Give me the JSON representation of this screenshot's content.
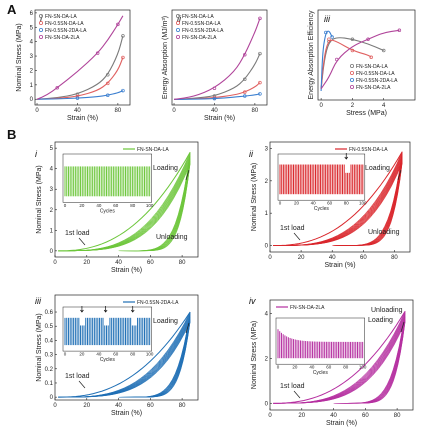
{
  "colors": {
    "la": "#7a7a7a",
    "s055": "#e06060",
    "s0552da": "#3b7fd0",
    "s2la": "#b0449a",
    "green": "#6cc63a",
    "red": "#d9262b",
    "blue": "#1f6fb5",
    "magenta": "#b52fa0"
  },
  "letters": {
    "a": "A",
    "b": "B"
  },
  "chart_data": [
    {
      "id": "A-i",
      "roman": "i",
      "type": "line",
      "xlabel": "Strain (%)",
      "ylabel": "Nominal Stress (MPa)",
      "xlim": [
        -2,
        92
      ],
      "ylim": [
        -0.4,
        6.2
      ],
      "xticks": [
        0,
        40,
        80
      ],
      "yticks": [
        0,
        1,
        2,
        3,
        4,
        5,
        6
      ],
      "legend": [
        "FN-SN-DA-LA",
        "FN-0.5SN-DA-LA",
        "FN-0.5SN-2DA-LA",
        "FN-SN-DA-2LA"
      ],
      "series": [
        {
          "name": "FN-SN-DA-LA",
          "color": "#7a7a7a",
          "points": [
            [
              0,
              0
            ],
            [
              20,
              0.1
            ],
            [
              40,
              0.35
            ],
            [
              60,
              1.0
            ],
            [
              70,
              1.7
            ],
            [
              80,
              3.1
            ],
            [
              85,
              4.4
            ]
          ]
        },
        {
          "name": "FN-0.5SN-DA-LA",
          "color": "#e06060",
          "points": [
            [
              0,
              0
            ],
            [
              20,
              0.05
            ],
            [
              40,
              0.2
            ],
            [
              60,
              0.6
            ],
            [
              70,
              1.1
            ],
            [
              80,
              2.0
            ],
            [
              85,
              2.9
            ]
          ]
        },
        {
          "name": "FN-0.5SN-2DA-LA",
          "color": "#3b7fd0",
          "points": [
            [
              0,
              0
            ],
            [
              20,
              0.02
            ],
            [
              40,
              0.08
            ],
            [
              60,
              0.18
            ],
            [
              70,
              0.28
            ],
            [
              80,
              0.45
            ],
            [
              85,
              0.6
            ]
          ]
        },
        {
          "name": "FN-SN-DA-2LA",
          "color": "#b0449a",
          "points": [
            [
              0,
              0
            ],
            [
              10,
              0.3
            ],
            [
              20,
              0.8
            ],
            [
              40,
              1.9
            ],
            [
              60,
              3.2
            ],
            [
              70,
              4.1
            ],
            [
              80,
              5.2
            ],
            [
              85,
              5.8
            ]
          ]
        }
      ]
    },
    {
      "id": "A-ii",
      "roman": "ii",
      "type": "line",
      "xlabel": "Strain (%)",
      "ylabel": "Energy Absorption (MJ/m³)",
      "xlim": [
        -2,
        92
      ],
      "ylim": [
        -0.1,
        1.6
      ],
      "xticks": [
        0,
        40,
        80
      ],
      "yticks": [],
      "legend": [
        "FN-SN-DA-LA",
        "FN-0.5SN-DA-LA",
        "FN-0.5SN-2DA-LA",
        "FN-SN-DA-2LA"
      ],
      "series": [
        {
          "name": "FN-SN-DA-LA",
          "color": "#7a7a7a",
          "points": [
            [
              0,
              0
            ],
            [
              20,
              0.02
            ],
            [
              40,
              0.06
            ],
            [
              60,
              0.2
            ],
            [
              70,
              0.36
            ],
            [
              80,
              0.62
            ],
            [
              85,
              0.82
            ]
          ]
        },
        {
          "name": "FN-0.5SN-DA-LA",
          "color": "#e06060",
          "points": [
            [
              0,
              0
            ],
            [
              20,
              0.01
            ],
            [
              40,
              0.03
            ],
            [
              60,
              0.08
            ],
            [
              70,
              0.13
            ],
            [
              80,
              0.22
            ],
            [
              85,
              0.3
            ]
          ]
        },
        {
          "name": "FN-0.5SN-2DA-LA",
          "color": "#3b7fd0",
          "points": [
            [
              0,
              0
            ],
            [
              20,
              0.005
            ],
            [
              40,
              0.015
            ],
            [
              60,
              0.04
            ],
            [
              70,
              0.06
            ],
            [
              80,
              0.08
            ],
            [
              85,
              0.1
            ]
          ]
        },
        {
          "name": "FN-SN-DA-2LA",
          "color": "#b0449a",
          "points": [
            [
              0,
              0
            ],
            [
              20,
              0.05
            ],
            [
              40,
              0.2
            ],
            [
              60,
              0.5
            ],
            [
              70,
              0.8
            ],
            [
              80,
              1.2
            ],
            [
              85,
              1.45
            ]
          ]
        }
      ]
    },
    {
      "id": "A-iii",
      "roman": "iii",
      "type": "line",
      "xlabel": "Stress (MPa)",
      "ylabel": "Energy Absorption Efficiency",
      "xlim": [
        -0.2,
        6
      ],
      "ylim": [
        0,
        0.4
      ],
      "xticks": [
        0,
        2,
        4
      ],
      "yticks": [],
      "legend": [
        "FN-SN-DA-LA",
        "FN-0.5SN-DA-LA",
        "FN-0.5SN-2DA-LA",
        "FN-SN-DA-2LA"
      ],
      "series": [
        {
          "name": "FN-SN-DA-LA",
          "color": "#7a7a7a",
          "points": [
            [
              0,
              0.05
            ],
            [
              0.2,
              0.18
            ],
            [
              0.5,
              0.26
            ],
            [
              1,
              0.28
            ],
            [
              2,
              0.27
            ],
            [
              3,
              0.25
            ],
            [
              4,
              0.22
            ]
          ]
        },
        {
          "name": "FN-0.5SN-DA-LA",
          "color": "#e06060",
          "points": [
            [
              0,
              0.05
            ],
            [
              0.2,
              0.2
            ],
            [
              0.5,
              0.27
            ],
            [
              1,
              0.26
            ],
            [
              2,
              0.22
            ],
            [
              3,
              0.2
            ],
            [
              3.2,
              0.19
            ]
          ]
        },
        {
          "name": "FN-0.5SN-2DA-LA",
          "color": "#3b7fd0",
          "points": [
            [
              0,
              0.04
            ],
            [
              0.1,
              0.22
            ],
            [
              0.3,
              0.3
            ],
            [
              0.5,
              0.31
            ],
            [
              0.7,
              0.28
            ]
          ]
        },
        {
          "name": "FN-SN-DA-2LA",
          "color": "#b0449a",
          "points": [
            [
              0,
              0.05
            ],
            [
              0.5,
              0.1
            ],
            [
              1,
              0.18
            ],
            [
              2,
              0.24
            ],
            [
              3,
              0.27
            ],
            [
              4,
              0.3
            ],
            [
              5,
              0.31
            ]
          ]
        }
      ]
    },
    {
      "id": "B-i",
      "roman": "i",
      "type": "line",
      "color": "#6cc63a",
      "legend": "FN-SN-DA-LA",
      "xlabel": "Strain (%)",
      "ylabel": "Nominal Stress (MPa)",
      "xlim": [
        0,
        90
      ],
      "ylim": [
        -0.3,
        5.3
      ],
      "xticks": [
        0,
        20,
        40,
        60,
        80
      ],
      "yticks": [
        0,
        1,
        2,
        3,
        4,
        5
      ],
      "loading_label": "Loading",
      "unloading_label": "Unloading",
      "first_load_label": "1st load",
      "max_stress": 4.8,
      "max_strain": 85,
      "cycles": 20,
      "inset": {
        "xlabel": "Cycles",
        "ylabel": "",
        "xticks": [
          0,
          20,
          40,
          60,
          80,
          100
        ],
        "yticks": [],
        "level": 0.78,
        "drops": []
      }
    },
    {
      "id": "B-ii",
      "roman": "ii",
      "type": "line",
      "color": "#d9262b",
      "legend": "FN-0.5SN-DA-LA",
      "xlabel": "Strain (%)",
      "ylabel": "Nominal Stress (MPa)",
      "xlim": [
        0,
        90
      ],
      "ylim": [
        -0.2,
        3.2
      ],
      "xticks": [
        0,
        20,
        40,
        60,
        80
      ],
      "yticks": [
        0,
        1,
        2,
        3
      ],
      "loading_label": "Loading",
      "unloading_label": "Unloading",
      "first_load_label": "1st load",
      "max_stress": 2.9,
      "max_strain": 85,
      "cycles": 20,
      "inset": {
        "xlabel": "Cycles",
        "ylabel": "",
        "xticks": [
          0,
          20,
          40,
          60,
          80,
          100
        ],
        "yticks": [],
        "level": 0.82,
        "drops": [
          80
        ]
      }
    },
    {
      "id": "B-iii",
      "roman": "iii",
      "type": "line",
      "color": "#1f6fb5",
      "legend": "FN-0.5SN-2DA-LA",
      "xlabel": "Strain (%)",
      "ylabel": "Nominal Stress (MPa)",
      "xlim": [
        0,
        90
      ],
      "ylim": [
        -0.02,
        0.72
      ],
      "xticks": [
        0,
        20,
        40,
        60,
        80
      ],
      "yticks": [
        0,
        0.1,
        0.2,
        0.3,
        0.4,
        0.5,
        0.6
      ],
      "loading_label": "Loading",
      "unloading_label": "",
      "first_load_label": "1st load",
      "max_stress": 0.6,
      "max_strain": 85,
      "cycles": 20,
      "inset": {
        "xlabel": "Cycles",
        "ylabel": "",
        "xticks": [
          0,
          20,
          40,
          60,
          80,
          100
        ],
        "yticks": [],
        "level": 0.8,
        "drops": [
          20,
          48,
          80
        ]
      }
    },
    {
      "id": "B-iv",
      "roman": "iv",
      "type": "line",
      "color": "#b52fa0",
      "legend": "FN-SN-DA-2LA",
      "xlabel": "Strain (%)",
      "ylabel": "Nominal Stress (MPa)",
      "xlim": [
        0,
        90
      ],
      "ylim": [
        -0.3,
        4.6
      ],
      "xticks": [
        0,
        20,
        40,
        60,
        80
      ],
      "yticks": [
        0,
        2,
        4
      ],
      "loading_label": "Loading",
      "unloading_label": "Unloading",
      "first_load_label": "1st load",
      "max_stress": 4.1,
      "max_strain": 85,
      "cycles": 20,
      "inset": {
        "xlabel": "Cycles",
        "ylabel": "",
        "xticks": [
          0,
          20,
          40,
          60,
          80,
          100
        ],
        "yticks": [],
        "level": 0.45,
        "drops": [],
        "decay": true
      }
    }
  ]
}
